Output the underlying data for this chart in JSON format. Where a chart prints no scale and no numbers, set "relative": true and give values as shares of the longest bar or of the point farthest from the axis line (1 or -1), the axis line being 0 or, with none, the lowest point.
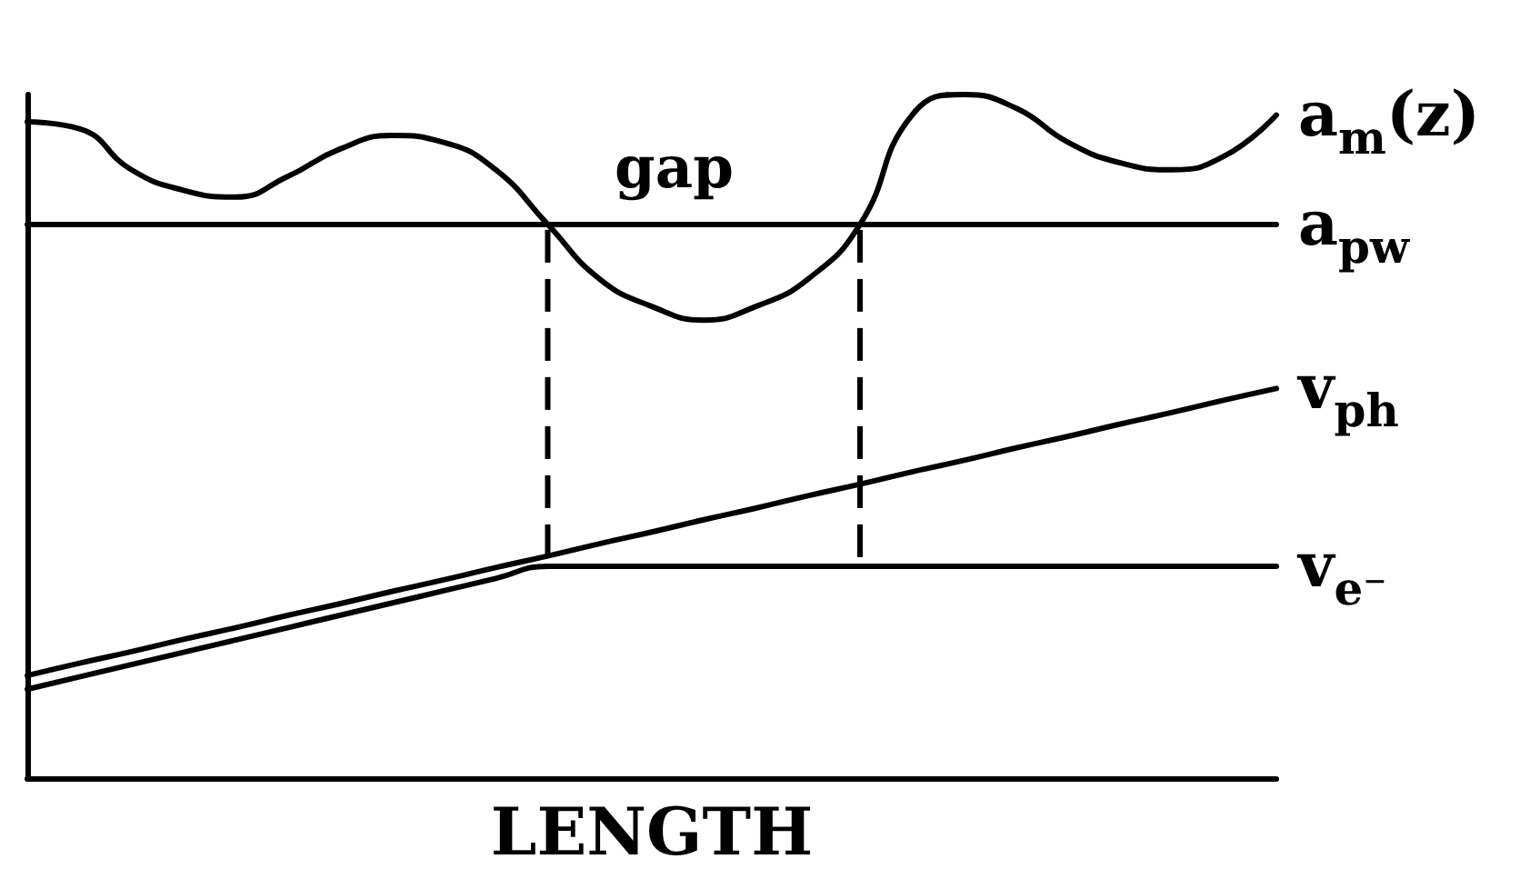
{
  "chart_data": {
    "type": "line",
    "relative": true,
    "xlabel": "LENGTH",
    "annotations": [
      "gap"
    ],
    "marker": "none",
    "line_style": "solid",
    "tick_labels": false,
    "categories": [
      null,
      null,
      null,
      null,
      null,
      null,
      null,
      null,
      null,
      null,
      null,
      null,
      null,
      null,
      null,
      null,
      null,
      null,
      null,
      null,
      null,
      null,
      null,
      null,
      null
    ],
    "series": [
      {
        "name": "a$_{m}$(z)",
        "color": "#000000",
        "values": [
          0.96,
          0.95,
          0.89,
          0.86,
          0.85,
          0.88,
          0.92,
          0.94,
          0.93,
          0.89,
          0.81,
          0.73,
          0.69,
          0.67,
          0.69,
          0.73,
          0.81,
          0.97,
          1,
          0.98,
          0.93,
          0.9,
          0.89,
          0.91,
          0.97
        ]
      },
      {
        "name": "a$_{pw}$",
        "color": "#000000",
        "values": [
          0.81,
          0.81,
          0.81,
          0.81,
          0.81,
          0.81,
          0.81,
          0.81,
          0.81,
          0.81,
          0.81,
          0.81,
          0.81,
          0.81,
          0.81,
          0.81,
          0.81,
          0.81,
          0.81,
          0.81,
          0.81,
          0.81,
          0.81,
          0.81,
          0.81
        ]
      },
      {
        "name": "v$_{ph}$",
        "color": "#000000",
        "values": [
          0.15,
          0.168,
          0.185,
          0.203,
          0.22,
          0.238,
          0.255,
          0.273,
          0.29,
          0.308,
          0.325,
          0.343,
          0.36,
          0.378,
          0.395,
          0.413,
          0.43,
          0.448,
          0.465,
          0.483,
          0.5,
          0.518,
          0.535,
          0.553,
          0.57
        ]
      },
      {
        "name": "v$_{e⁻}$",
        "color": "#000000",
        "values": [
          0.13,
          0.148,
          0.166,
          0.184,
          0.202,
          0.22,
          0.238,
          0.256,
          0.274,
          0.292,
          0.31,
          0.31,
          0.31,
          0.31,
          0.31,
          0.31,
          0.31,
          0.31,
          0.31,
          0.31,
          0.31,
          0.31,
          0.31,
          0.31,
          0.31
        ]
      }
    ]
  }
}
